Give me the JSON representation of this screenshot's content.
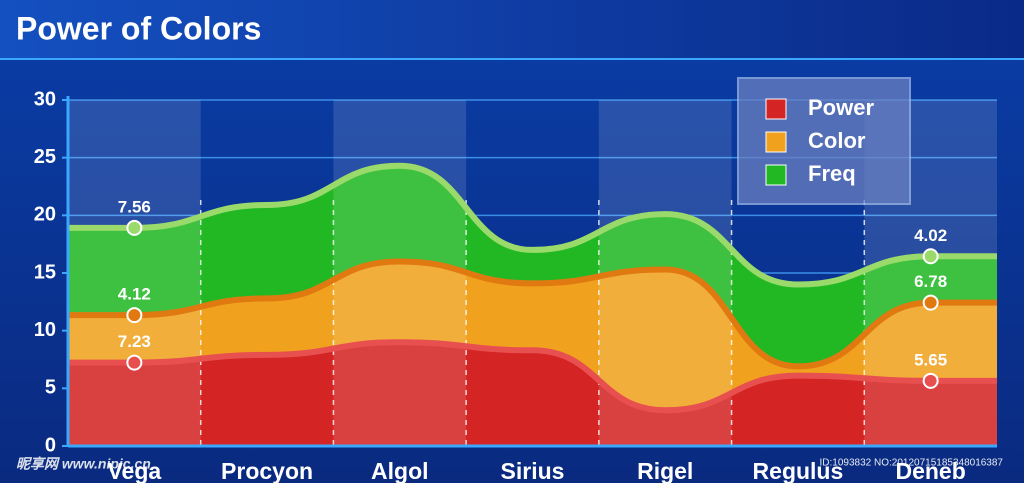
{
  "chart_data": {
    "type": "stacked-area",
    "title": "Power of Colors",
    "categories": [
      "Vega",
      "Procyon",
      "Algol",
      "Sirius",
      "Rigel",
      "Regulus",
      "Deneb"
    ],
    "series": [
      {
        "name": "Power",
        "color": "#d42424",
        "values": [
          7.23,
          7.9,
          9.0,
          8.3,
          3.1,
          6.1,
          5.65
        ],
        "value_labels": [
          "7.23",
          null,
          null,
          null,
          null,
          null,
          "5.65"
        ]
      },
      {
        "name": "Color",
        "color": "#f0a21e",
        "values": [
          4.12,
          4.9,
          7.0,
          5.8,
          12.2,
          0.8,
          6.78
        ],
        "value_labels": [
          "4.12",
          null,
          null,
          null,
          null,
          null,
          "6.78"
        ]
      },
      {
        "name": "Freq",
        "color": "#22b824",
        "values": [
          7.56,
          8.1,
          8.3,
          2.9,
          4.8,
          7.1,
          4.02
        ],
        "value_labels": [
          "7.56",
          null,
          null,
          null,
          null,
          null,
          "4.02"
        ]
      }
    ],
    "ylim": [
      0,
      30
    ],
    "yticks": [
      0,
      5,
      10,
      15,
      20,
      25,
      30
    ],
    "grid": true,
    "legend": "top-right",
    "watermark": [
      "昵享网 www.nipic.cn",
      "ID:1093832 NO:20120715185348016387"
    ]
  }
}
